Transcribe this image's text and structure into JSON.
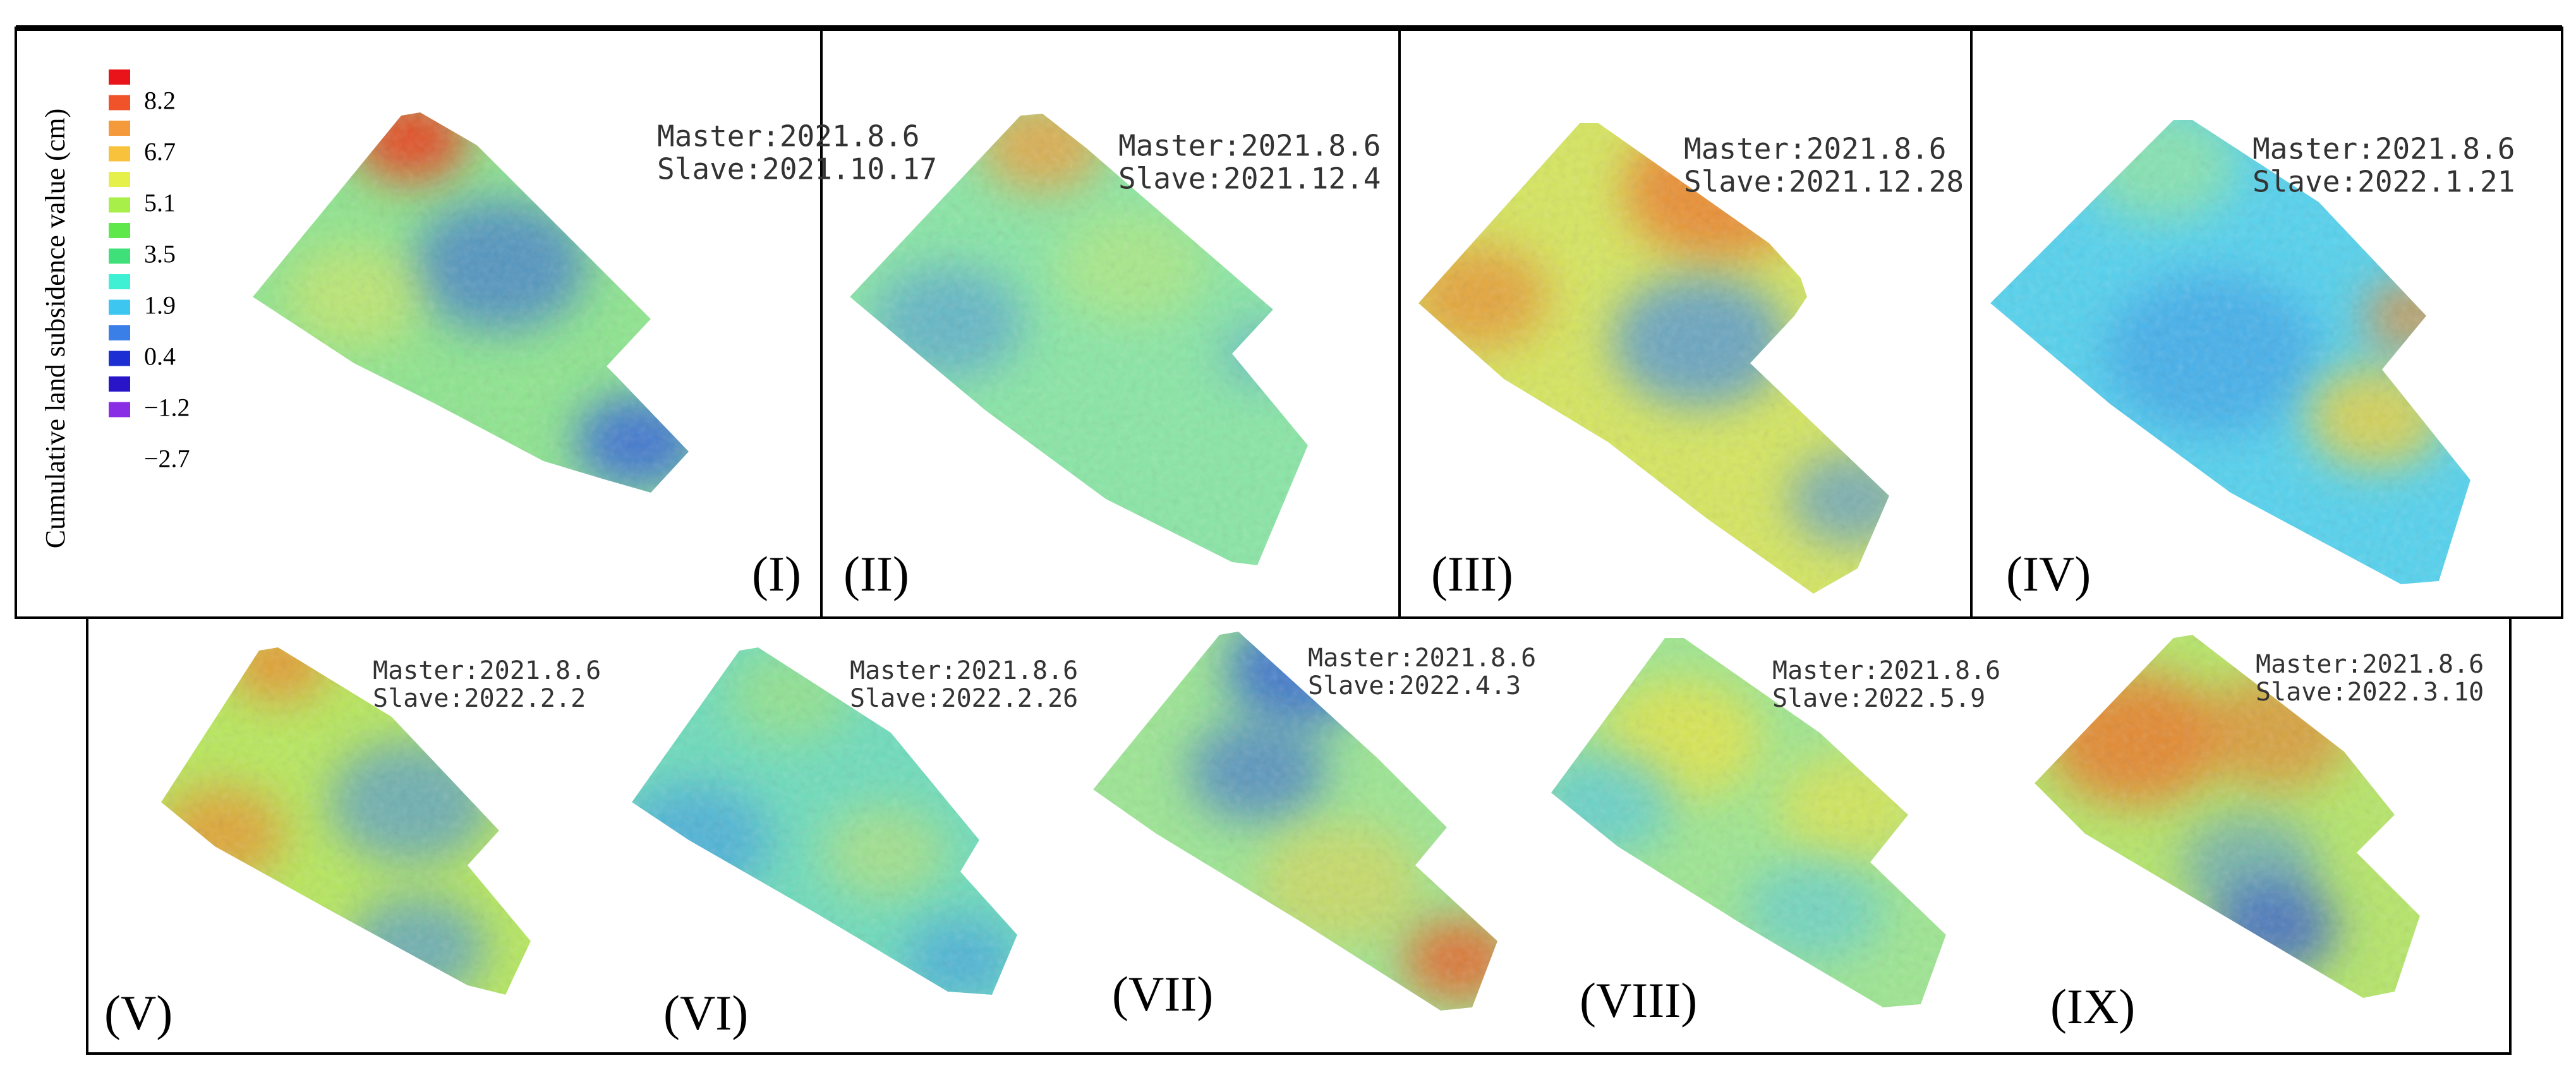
{
  "figure": {
    "legend": {
      "title": "Cumulative land subsidence value (cm)",
      "swatches": [
        "#e8141a",
        "#f0522a",
        "#f59a3a",
        "#f8c23d",
        "#e6f04a",
        "#a8ef4a",
        "#5ee84a",
        "#3fe07a",
        "#40f0d4",
        "#3cc6f0",
        "#3a7ee8",
        "#1d2fd2",
        "#2a14c8",
        "#8a2ee6"
      ],
      "ticks": [
        "8.2",
        "6.7",
        "5.1",
        "3.5",
        "1.9",
        "0.4",
        "−1.2",
        "−2.7"
      ]
    },
    "panels": [
      {
        "label": "(I)",
        "master": "Master:2021.8.6",
        "slave": "Slave:2021.10.17",
        "base_color": "#8fe590",
        "blobs": [
          {
            "color": "#ef3a1a",
            "intensity": 0.9
          },
          {
            "color": "#2f5fe0",
            "intensity": 0.6
          },
          {
            "color": "#e8e85a",
            "intensity": 0.5
          },
          {
            "color": "#2f5fe0",
            "intensity": 0.8
          }
        ]
      },
      {
        "label": "(II)",
        "master": "Master:2021.8.6",
        "slave": "Slave:2021.12.4",
        "base_color": "#8ae6a6",
        "blobs": [
          {
            "color": "#f0a040",
            "intensity": 0.8
          },
          {
            "color": "#3f8ae8",
            "intensity": 0.5
          },
          {
            "color": "#c6ec72",
            "intensity": 0.5
          },
          {
            "color": "#3f8ae8",
            "intensity": 0.4
          }
        ]
      },
      {
        "label": "(III)",
        "master": "Master:2021.8.6",
        "slave": "Slave:2021.12.28",
        "base_color": "#d6e660",
        "blobs": [
          {
            "color": "#ee7a2a",
            "intensity": 0.8
          },
          {
            "color": "#3f8ae8",
            "intensity": 0.7
          },
          {
            "color": "#ee7a2a",
            "intensity": 0.6
          },
          {
            "color": "#3f8ae8",
            "intensity": 0.6
          }
        ]
      },
      {
        "label": "(IV)",
        "master": "Master:2021.8.6",
        "slave": "Slave:2022.1.21",
        "base_color": "#56d2ee",
        "blobs": [
          {
            "color": "#a8ec8a",
            "intensity": 0.6
          },
          {
            "color": "#3b9ae8",
            "intensity": 0.6
          },
          {
            "color": "#f3d23a",
            "intensity": 0.8
          },
          {
            "color": "#f08a2e",
            "intensity": 0.7
          }
        ]
      },
      {
        "label": "(V)",
        "master": "Master:2021.8.6",
        "slave": "Slave:2022.2.2",
        "base_color": "#b8e85e",
        "blobs": [
          {
            "color": "#ef8a2a",
            "intensity": 0.8
          },
          {
            "color": "#3f8ae8",
            "intensity": 0.6
          },
          {
            "color": "#ef8a2a",
            "intensity": 0.7
          },
          {
            "color": "#3f8ae8",
            "intensity": 0.6
          }
        ]
      },
      {
        "label": "(VI)",
        "master": "Master:2021.8.6",
        "slave": "Slave:2022.2.26",
        "base_color": "#6fdcbc",
        "blobs": [
          {
            "color": "#b6e86a",
            "intensity": 0.5
          },
          {
            "color": "#3b9ae8",
            "intensity": 0.6
          },
          {
            "color": "#d6e660",
            "intensity": 0.5
          },
          {
            "color": "#3b9ae8",
            "intensity": 0.6
          }
        ]
      },
      {
        "label": "(VII)",
        "master": "Master:2021.8.6",
        "slave": "Slave:2022.4.3",
        "base_color": "#9de694",
        "blobs": [
          {
            "color": "#3062d8",
            "intensity": 0.8
          },
          {
            "color": "#3062d8",
            "intensity": 0.6
          },
          {
            "color": "#f0d040",
            "intensity": 0.5
          },
          {
            "color": "#ee5a22",
            "intensity": 0.8
          }
        ]
      },
      {
        "label": "(VIII)",
        "master": "Master:2021.8.6",
        "slave": "Slave:2022.5.9",
        "base_color": "#9ee692",
        "blobs": [
          {
            "color": "#f1e43a",
            "intensity": 0.7
          },
          {
            "color": "#49c4ee",
            "intensity": 0.6
          },
          {
            "color": "#f1e43a",
            "intensity": 0.6
          },
          {
            "color": "#49c4ee",
            "intensity": 0.5
          }
        ]
      },
      {
        "label": "(IX)",
        "master": "Master:2021.8.6",
        "slave": "Slave:2022.3.10",
        "base_color": "#b6e66a",
        "blobs": [
          {
            "color": "#ee7428",
            "intensity": 0.8
          },
          {
            "color": "#ee7428",
            "intensity": 0.6
          },
          {
            "color": "#3f8ae8",
            "intensity": 0.5
          },
          {
            "color": "#2a52d8",
            "intensity": 0.7
          }
        ]
      }
    ]
  }
}
